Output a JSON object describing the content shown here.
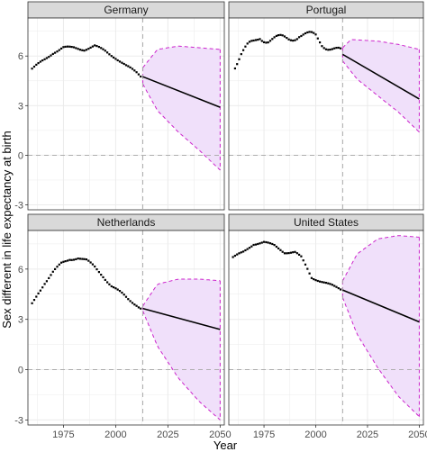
{
  "chart_data": {
    "type": "line",
    "xlabel": "Year",
    "ylabel": "Sex different in life expectancy at birth",
    "xlim": [
      1958,
      2052
    ],
    "ylim": [
      -3.3,
      8.3
    ],
    "x_ticks": [
      1975,
      2000,
      2025,
      2050
    ],
    "y_ticks": [
      -3,
      0,
      3,
      6
    ],
    "reference_year": 2013,
    "zero_line": 0,
    "grid": true,
    "colors": {
      "points": "#000000",
      "forecast_line": "#000000",
      "interval_fill": "#f0e0fa",
      "interval_edge": "#cc22cc",
      "reference_lines": "#a6a6a6",
      "strip_fill": "#d9d9d9",
      "panel_border": "#333333",
      "grid": "#ebebeb"
    },
    "panels": [
      {
        "label": "Germany",
        "observed": {
          "knots": [
            [
              1960,
              5.2
            ],
            [
              1965,
              5.7
            ],
            [
              1970,
              6.2
            ],
            [
              1975,
              6.5
            ],
            [
              1980,
              6.5
            ],
            [
              1985,
              6.4
            ],
            [
              1990,
              6.6
            ],
            [
              1995,
              6.3
            ],
            [
              2000,
              5.9
            ],
            [
              2005,
              5.4
            ],
            [
              2010,
              5.0
            ],
            [
              2012,
              4.8
            ]
          ],
          "noise": 0.06
        },
        "forecast": {
          "x": [
            2013,
            2050
          ],
          "y": [
            4.75,
            2.9
          ]
        },
        "interval": {
          "upper": [
            [
              2013,
              5.3
            ],
            [
              2020,
              6.4
            ],
            [
              2030,
              6.6
            ],
            [
              2040,
              6.5
            ],
            [
              2050,
              6.4
            ]
          ],
          "lower": [
            [
              2013,
              4.3
            ],
            [
              2020,
              2.7
            ],
            [
              2030,
              1.4
            ],
            [
              2040,
              0.3
            ],
            [
              2050,
              -0.9
            ]
          ]
        }
      },
      {
        "label": "Portugal",
        "observed": {
          "knots": [
            [
              1961,
              5.5
            ],
            [
              1964,
              6.1
            ],
            [
              1967,
              6.5
            ],
            [
              1970,
              6.8
            ],
            [
              1973,
              7.2
            ],
            [
              1977,
              7.0
            ],
            [
              1982,
              7.0
            ],
            [
              1987,
              7.1
            ],
            [
              1992,
              7.3
            ],
            [
              1996,
              7.2
            ],
            [
              2000,
              7.2
            ],
            [
              2003,
              6.8
            ],
            [
              2006,
              6.6
            ],
            [
              2009,
              6.4
            ],
            [
              2012,
              6.2
            ]
          ],
          "noise": 0.22
        },
        "forecast": {
          "x": [
            2013,
            2050
          ],
          "y": [
            6.1,
            3.4
          ]
        },
        "interval": {
          "upper": [
            [
              2013,
              6.5
            ],
            [
              2017,
              7.0
            ],
            [
              2030,
              6.9
            ],
            [
              2040,
              6.7
            ],
            [
              2050,
              6.4
            ]
          ],
          "lower": [
            [
              2013,
              5.7
            ],
            [
              2020,
              4.6
            ],
            [
              2030,
              3.6
            ],
            [
              2040,
              2.6
            ],
            [
              2050,
              1.4
            ]
          ]
        }
      },
      {
        "label": "Netherlands",
        "observed": {
          "knots": [
            [
              1960,
              3.9
            ],
            [
              1963,
              4.6
            ],
            [
              1966,
              5.2
            ],
            [
              1970,
              5.8
            ],
            [
              1974,
              6.3
            ],
            [
              1978,
              6.6
            ],
            [
              1982,
              6.7
            ],
            [
              1986,
              6.5
            ],
            [
              1990,
              6.1
            ],
            [
              1994,
              5.6
            ],
            [
              1998,
              5.0
            ],
            [
              2002,
              4.6
            ],
            [
              2006,
              4.2
            ],
            [
              2010,
              3.9
            ],
            [
              2012,
              3.7
            ]
          ],
          "noise": 0.08
        },
        "forecast": {
          "x": [
            2013,
            2050
          ],
          "y": [
            3.65,
            2.4
          ]
        },
        "interval": {
          "upper": [
            [
              2013,
              3.8
            ],
            [
              2020,
              5.1
            ],
            [
              2030,
              5.4
            ],
            [
              2040,
              5.4
            ],
            [
              2050,
              5.3
            ]
          ],
          "lower": [
            [
              2013,
              3.5
            ],
            [
              2020,
              1.4
            ],
            [
              2030,
              -0.5
            ],
            [
              2040,
              -1.9
            ],
            [
              2050,
              -3.0
            ]
          ]
        }
      },
      {
        "label": "United States",
        "observed": {
          "knots": [
            [
              1960,
              6.7
            ],
            [
              1965,
              7.0
            ],
            [
              1970,
              7.5
            ],
            [
              1975,
              7.6
            ],
            [
              1980,
              7.4
            ],
            [
              1985,
              7.0
            ],
            [
              1990,
              7.0
            ],
            [
              1993,
              6.7
            ],
            [
              1996,
              6.0
            ],
            [
              1998,
              5.5
            ],
            [
              2002,
              5.3
            ],
            [
              2006,
              5.1
            ],
            [
              2010,
              4.9
            ],
            [
              2012,
              4.8
            ]
          ],
          "noise": 0.05
        },
        "forecast": {
          "x": [
            2013,
            2050
          ],
          "y": [
            4.75,
            2.85
          ]
        },
        "interval": {
          "upper": [
            [
              2013,
              5.3
            ],
            [
              2020,
              6.9
            ],
            [
              2030,
              7.8
            ],
            [
              2040,
              8.0
            ],
            [
              2050,
              7.9
            ]
          ],
          "lower": [
            [
              2013,
              4.3
            ],
            [
              2020,
              2.1
            ],
            [
              2030,
              0.1
            ],
            [
              2040,
              -1.6
            ],
            [
              2050,
              -2.8
            ]
          ]
        }
      }
    ]
  }
}
